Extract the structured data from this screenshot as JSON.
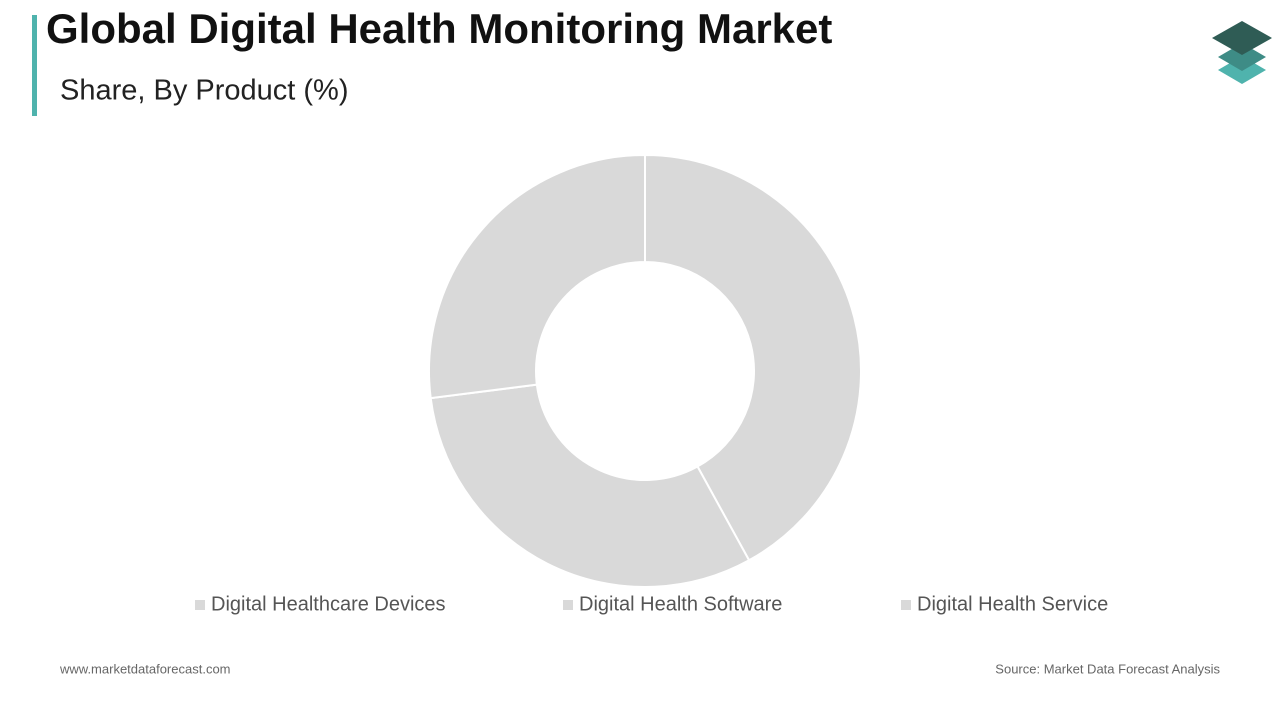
{
  "chart_data": {
    "type": "donut",
    "title": "Global Digital Health Monitoring Market",
    "subtitle": "Share, By Product (%)",
    "categories": [
      "Digital Healthcare Devices",
      "Digital Health Software",
      "Digital Health Service"
    ],
    "values": [
      42,
      31,
      27
    ],
    "colors": [
      "#d9d9d9",
      "#d9d9d9",
      "#d9d9d9"
    ]
  },
  "footer": {
    "website": "www.marketdataforecast.com",
    "source": "Source: Market Data Forecast Analysis"
  }
}
